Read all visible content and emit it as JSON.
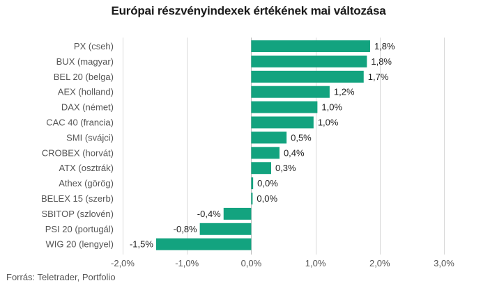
{
  "chart_data": {
    "type": "bar",
    "orientation": "horizontal",
    "title": "Európai részvényindexek értékének mai változása",
    "categories": [
      "PX (cseh)",
      "BUX (magyar)",
      "BEL 20 (belga)",
      "AEX (holland)",
      "DAX (német)",
      "CAC 40 (francia)",
      "SMI (svájci)",
      "CROBEX (horvát)",
      "ATX (osztrák)",
      "Athex (görög)",
      "BELEX 15 (szerb)",
      "SBITOP (szlovén)",
      "PSI 20 (portugál)",
      "WIG 20 (lengyel)"
    ],
    "values": [
      1.85,
      1.8,
      1.75,
      1.22,
      1.03,
      0.97,
      0.55,
      0.44,
      0.31,
      0.03,
      0.02,
      -0.43,
      -0.8,
      -1.48
    ],
    "value_labels": [
      "1,8%",
      "1,8%",
      "1,7%",
      "1,2%",
      "1,0%",
      "1,0%",
      "0,5%",
      "0,4%",
      "0,3%",
      "0,0%",
      "0,0%",
      "-0,4%",
      "-0,8%",
      "-1,5%"
    ],
    "xlim": [
      -2.0,
      3.0
    ],
    "x_ticks": [
      -2.0,
      -1.0,
      0.0,
      1.0,
      2.0,
      3.0
    ],
    "x_tick_labels": [
      "-2,0%",
      "-1,0%",
      "0,0%",
      "1,0%",
      "2,0%",
      "3,0%"
    ],
    "xlabel": "",
    "ylabel": "",
    "grid": true,
    "bar_color": "#13a37f",
    "source": "Forrás: Teletrader, Portfolio"
  }
}
